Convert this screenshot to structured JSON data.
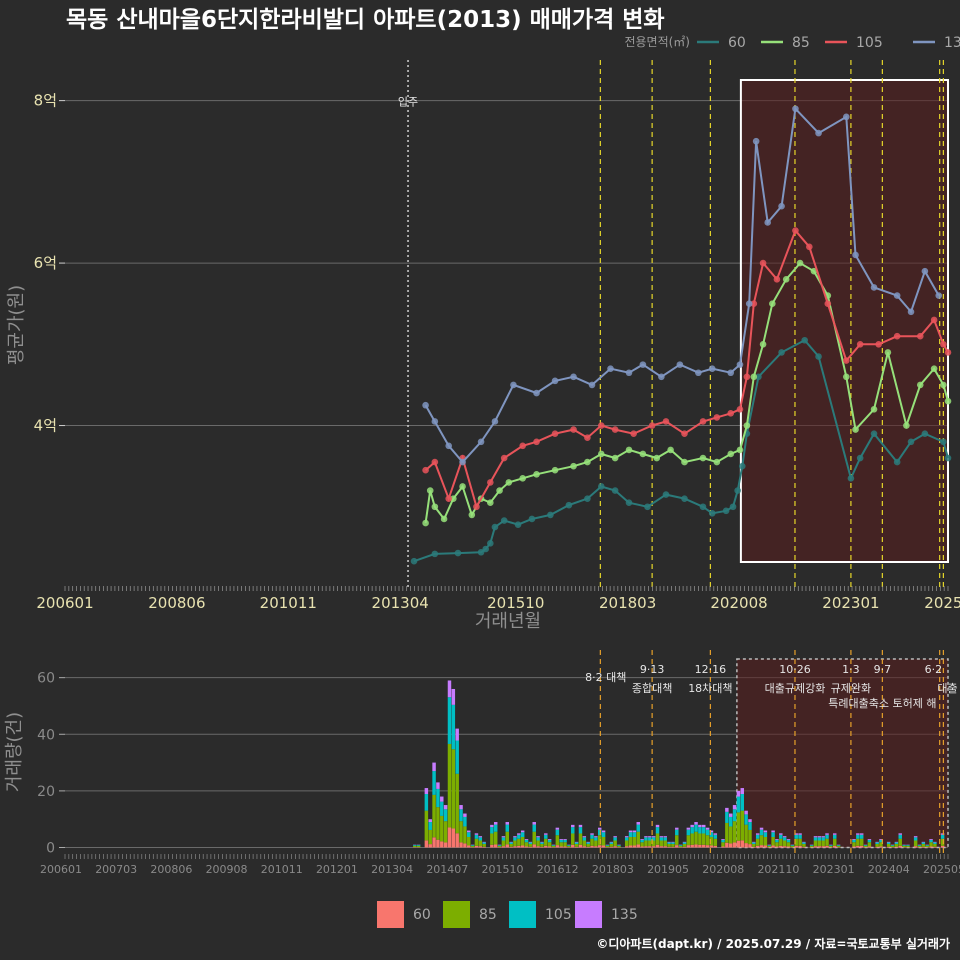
{
  "title": "목동 산내마을6단지한라비발디 아파트(2013) 매매가격 변화",
  "credit": "©디아파트(dapt.kr) / 2025.07.29 / 자료=국토교통부 실거래가",
  "colors": {
    "60": "#2b7a7a",
    "85": "#96e07a",
    "105": "#e8545a",
    "135": "#7f95c0",
    "bar60": "#f8766d",
    "bar85": "#7cae00",
    "bar105": "#00bfc4",
    "bar135": "#c77cff",
    "policy": "#e6d72a",
    "highlight": "#5a1e1e"
  },
  "chart_data": [
    {
      "type": "line",
      "name": "price",
      "ylabel": "평균가(원)",
      "xlabel": "거래년월",
      "legend_title": "전용면적(㎡)",
      "legend_position": "top-right",
      "ylim": [
        2.0,
        8.5
      ],
      "yticks": [
        4,
        6,
        8
      ],
      "ytick_labels": [
        "4억",
        "6억",
        "8억"
      ],
      "xlim": [
        2006.0,
        2025.1
      ],
      "xticks": [
        2006.0,
        2008.42,
        2010.83,
        2013.25,
        2015.75,
        2018.17,
        2020.58,
        2023.0,
        2025.0
      ],
      "xtick_labels": [
        "200601",
        "200806",
        "201011",
        "201304",
        "201510",
        "201803",
        "202008",
        "202301",
        "2025"
      ],
      "move_in": {
        "x": 2013.42,
        "label": "입주"
      },
      "policy_lines": [
        2017.58,
        2018.7,
        2019.96,
        2021.79,
        2023.0,
        2023.68,
        2024.92,
        2025.0
      ],
      "highlight_range": [
        2020.62,
        2025.1
      ],
      "series": [
        {
          "name": "60",
          "points": [
            [
              2013.55,
              2.33
            ],
            [
              2014.0,
              2.42
            ],
            [
              2014.5,
              2.43
            ],
            [
              2015.0,
              2.44
            ],
            [
              2015.1,
              2.48
            ],
            [
              2015.2,
              2.55
            ],
            [
              2015.3,
              2.75
            ],
            [
              2015.5,
              2.83
            ],
            [
              2015.8,
              2.78
            ],
            [
              2016.1,
              2.85
            ],
            [
              2016.5,
              2.9
            ],
            [
              2016.9,
              3.02
            ],
            [
              2017.3,
              3.1
            ],
            [
              2017.6,
              3.25
            ],
            [
              2017.9,
              3.2
            ],
            [
              2018.2,
              3.05
            ],
            [
              2018.6,
              3.0
            ],
            [
              2019.0,
              3.15
            ],
            [
              2019.4,
              3.1
            ],
            [
              2019.8,
              3.0
            ],
            [
              2020.0,
              2.92
            ],
            [
              2020.3,
              2.95
            ],
            [
              2020.45,
              3.0
            ],
            [
              2020.55,
              3.2
            ],
            [
              2020.65,
              3.5
            ],
            [
              2020.75,
              3.9
            ],
            [
              2021.0,
              4.6
            ],
            [
              2021.5,
              4.9
            ],
            [
              2022.0,
              5.05
            ],
            [
              2022.3,
              4.85
            ],
            [
              2023.0,
              3.35
            ],
            [
              2023.2,
              3.6
            ],
            [
              2023.5,
              3.9
            ],
            [
              2024.0,
              3.55
            ],
            [
              2024.3,
              3.8
            ],
            [
              2024.6,
              3.9
            ],
            [
              2025.0,
              3.8
            ],
            [
              2025.1,
              3.6
            ]
          ]
        },
        {
          "name": "85",
          "points": [
            [
              2013.8,
              2.8
            ],
            [
              2013.9,
              3.2
            ],
            [
              2014.0,
              3.0
            ],
            [
              2014.2,
              2.85
            ],
            [
              2014.4,
              3.1
            ],
            [
              2014.6,
              3.25
            ],
            [
              2014.8,
              2.9
            ],
            [
              2015.0,
              3.1
            ],
            [
              2015.2,
              3.05
            ],
            [
              2015.4,
              3.2
            ],
            [
              2015.6,
              3.3
            ],
            [
              2015.9,
              3.35
            ],
            [
              2016.2,
              3.4
            ],
            [
              2016.6,
              3.45
            ],
            [
              2017.0,
              3.5
            ],
            [
              2017.3,
              3.55
            ],
            [
              2017.6,
              3.65
            ],
            [
              2017.9,
              3.6
            ],
            [
              2018.2,
              3.7
            ],
            [
              2018.5,
              3.65
            ],
            [
              2018.8,
              3.6
            ],
            [
              2019.1,
              3.7
            ],
            [
              2019.4,
              3.55
            ],
            [
              2019.8,
              3.6
            ],
            [
              2020.1,
              3.55
            ],
            [
              2020.4,
              3.65
            ],
            [
              2020.6,
              3.7
            ],
            [
              2020.75,
              4.0
            ],
            [
              2020.9,
              4.6
            ],
            [
              2021.1,
              5.0
            ],
            [
              2021.3,
              5.5
            ],
            [
              2021.6,
              5.8
            ],
            [
              2021.9,
              6.0
            ],
            [
              2022.2,
              5.9
            ],
            [
              2022.5,
              5.6
            ],
            [
              2022.9,
              4.6
            ],
            [
              2023.1,
              3.95
            ],
            [
              2023.5,
              4.2
            ],
            [
              2023.8,
              4.9
            ],
            [
              2024.2,
              4.0
            ],
            [
              2024.5,
              4.5
            ],
            [
              2024.8,
              4.7
            ],
            [
              2025.0,
              4.5
            ],
            [
              2025.1,
              4.3
            ]
          ]
        },
        {
          "name": "105",
          "points": [
            [
              2013.8,
              3.45
            ],
            [
              2014.0,
              3.55
            ],
            [
              2014.3,
              3.1
            ],
            [
              2014.6,
              3.6
            ],
            [
              2014.9,
              3.0
            ],
            [
              2015.2,
              3.3
            ],
            [
              2015.5,
              3.6
            ],
            [
              2015.9,
              3.75
            ],
            [
              2016.2,
              3.8
            ],
            [
              2016.6,
              3.9
            ],
            [
              2017.0,
              3.95
            ],
            [
              2017.3,
              3.85
            ],
            [
              2017.6,
              4.0
            ],
            [
              2017.9,
              3.95
            ],
            [
              2018.3,
              3.9
            ],
            [
              2018.7,
              4.0
            ],
            [
              2019.0,
              4.05
            ],
            [
              2019.4,
              3.9
            ],
            [
              2019.8,
              4.05
            ],
            [
              2020.1,
              4.1
            ],
            [
              2020.4,
              4.15
            ],
            [
              2020.6,
              4.2
            ],
            [
              2020.75,
              4.6
            ],
            [
              2020.9,
              5.5
            ],
            [
              2021.1,
              6.0
            ],
            [
              2021.4,
              5.8
            ],
            [
              2021.8,
              6.4
            ],
            [
              2022.1,
              6.2
            ],
            [
              2022.5,
              5.5
            ],
            [
              2022.9,
              4.8
            ],
            [
              2023.2,
              5.0
            ],
            [
              2023.6,
              5.0
            ],
            [
              2024.0,
              5.1
            ],
            [
              2024.5,
              5.1
            ],
            [
              2024.8,
              5.3
            ],
            [
              2025.0,
              5.0
            ],
            [
              2025.1,
              4.9
            ]
          ]
        },
        {
          "name": "135",
          "points": [
            [
              2013.8,
              4.25
            ],
            [
              2014.0,
              4.05
            ],
            [
              2014.3,
              3.75
            ],
            [
              2014.6,
              3.55
            ],
            [
              2015.0,
              3.8
            ],
            [
              2015.3,
              4.05
            ],
            [
              2015.7,
              4.5
            ],
            [
              2016.2,
              4.4
            ],
            [
              2016.6,
              4.55
            ],
            [
              2017.0,
              4.6
            ],
            [
              2017.4,
              4.5
            ],
            [
              2017.8,
              4.7
            ],
            [
              2018.2,
              4.65
            ],
            [
              2018.5,
              4.75
            ],
            [
              2018.9,
              4.6
            ],
            [
              2019.3,
              4.75
            ],
            [
              2019.7,
              4.65
            ],
            [
              2020.0,
              4.7
            ],
            [
              2020.4,
              4.65
            ],
            [
              2020.6,
              4.75
            ],
            [
              2020.8,
              5.5
            ],
            [
              2020.95,
              7.5
            ],
            [
              2021.2,
              6.5
            ],
            [
              2021.5,
              6.7
            ],
            [
              2021.8,
              7.9
            ],
            [
              2022.3,
              7.6
            ],
            [
              2022.9,
              7.8
            ],
            [
              2023.1,
              6.1
            ],
            [
              2023.5,
              5.7
            ],
            [
              2024.0,
              5.6
            ],
            [
              2024.3,
              5.4
            ],
            [
              2024.6,
              5.9
            ],
            [
              2024.9,
              5.6
            ]
          ]
        }
      ]
    },
    {
      "type": "bar",
      "name": "volume",
      "stacked": true,
      "ylabel": "거래량(건)",
      "ylim": [
        -3,
        68
      ],
      "yticks": [
        0,
        20,
        40,
        60
      ],
      "xtick_labels": [
        "200601",
        "200703",
        "200806",
        "200908",
        "201011",
        "201201",
        "201304",
        "201407",
        "201510",
        "201612",
        "201803",
        "201905",
        "202008",
        "202110",
        "202301",
        "202404",
        "202505"
      ],
      "legend": [
        "60",
        "85",
        "105",
        "135"
      ],
      "legend_position": "bottom",
      "annotations": [
        {
          "x": 2017.58,
          "date": "",
          "label": "8·2 대책"
        },
        {
          "x": 2018.7,
          "date": "9·13",
          "label": "종합대책"
        },
        {
          "x": 2019.96,
          "date": "12·16",
          "label": "18차대책"
        },
        {
          "x": 2021.79,
          "date": "10·26",
          "label": "대출규제강화"
        },
        {
          "x": 2023.0,
          "date": "1·3",
          "label": "규제완화"
        },
        {
          "x": 2023.68,
          "date": "9·7",
          "label": "특례대출축소 토허제 해"
        },
        {
          "x": 2025.0,
          "date": "6·2",
          "label": "대출"
        }
      ]
    }
  ]
}
